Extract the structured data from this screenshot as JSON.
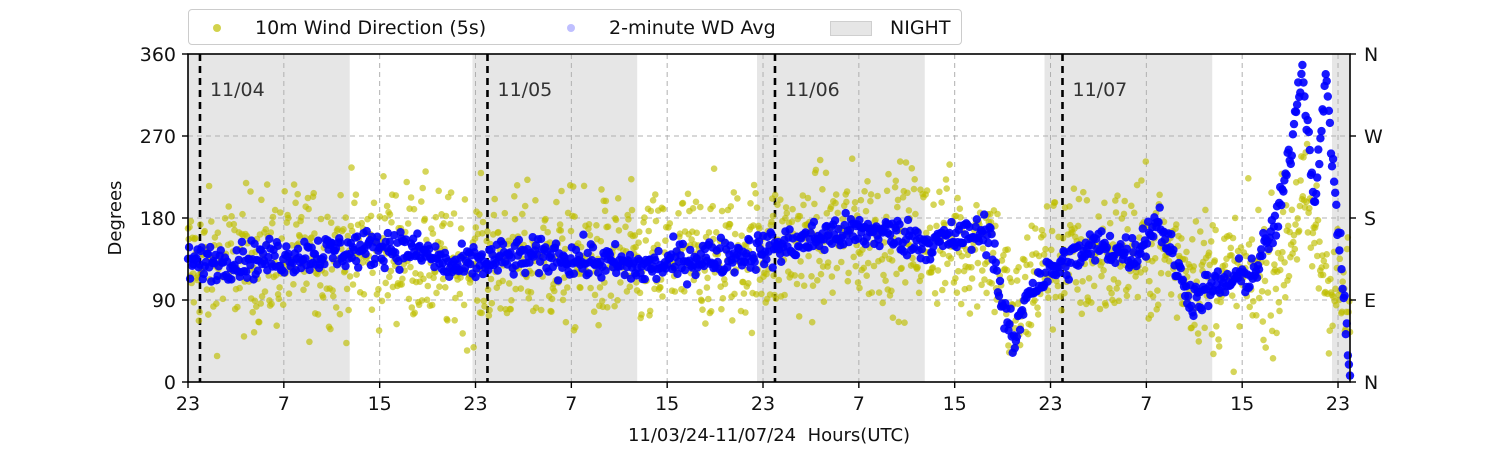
{
  "chart_data": {
    "type": "scatter",
    "title": "",
    "xlabel": "11/03/24-11/07/24  Hours(UTC)",
    "ylabel": "Degrees",
    "x_unit": "hours (UTC)",
    "x_start": "2024-11-03 23:00",
    "xlim": [
      "2024-11-03 23:00",
      "2024-11-08 00:00"
    ],
    "ylim": [
      0,
      360
    ],
    "y_ticks": [
      0,
      90,
      180,
      270,
      360
    ],
    "x_tick_labels": [
      "23",
      "7",
      "15",
      "23",
      "7",
      "15",
      "23",
      "7",
      "15",
      "23",
      "7",
      "15",
      "23"
    ],
    "right_axis_tick_labels": [
      "N",
      "E",
      "S",
      "W",
      "N"
    ],
    "grid": true,
    "legend_position": "top",
    "legend": [
      {
        "label": "10m Wind Direction (5s)",
        "kind": "marker",
        "color": "#bfbf00"
      },
      {
        "label": "2-minute WD Avg",
        "kind": "marker",
        "color": "#0000ff"
      },
      {
        "label": "NIGHT",
        "kind": "patch",
        "color": "#e6e6e6"
      }
    ],
    "night_periods": [
      {
        "start": "2024-11-03 23:00",
        "end": "2024-11-04 12:30"
      },
      {
        "start": "2024-11-04 22:45",
        "end": "2024-11-05 12:30"
      },
      {
        "start": "2024-11-05 22:30",
        "end": "2024-11-06 12:30"
      },
      {
        "start": "2024-11-06 22:30",
        "end": "2024-11-07 12:30"
      },
      {
        "start": "2024-11-07 22:30",
        "end": "2024-11-08 00:00"
      }
    ],
    "day_markers": [
      {
        "label": "11/04",
        "time": "2024-11-04 00:00"
      },
      {
        "label": "11/05",
        "time": "2024-11-05 00:00"
      },
      {
        "label": "11/06",
        "time": "2024-11-06 00:00"
      },
      {
        "label": "11/07",
        "time": "2024-11-07 00:00"
      }
    ],
    "series": [
      {
        "name": "10m Wind Direction (5s)",
        "color": "#bfbf00",
        "spread": 38,
        "x": [
          "2024-11-03 23:00",
          "2024-11-04 01:00",
          "2024-11-04 05:00",
          "2024-11-04 09:00",
          "2024-11-04 13:00",
          "2024-11-04 17:00",
          "2024-11-04 21:00",
          "2024-11-05 01:00",
          "2024-11-05 05:00",
          "2024-11-05 09:00",
          "2024-11-05 13:00",
          "2024-11-05 17:00",
          "2024-11-05 21:00",
          "2024-11-06 01:00",
          "2024-11-06 05:00",
          "2024-11-06 09:00",
          "2024-11-06 13:00",
          "2024-11-06 16:00",
          "2024-11-06 18:00",
          "2024-11-06 20:00",
          "2024-11-06 21:30",
          "2024-11-07 00:00",
          "2024-11-07 03:00",
          "2024-11-07 06:00",
          "2024-11-07 09:00",
          "2024-11-07 12:00",
          "2024-11-07 15:00",
          "2024-11-07 18:00",
          "2024-11-07 20:00",
          "2024-11-07 22:00",
          "2024-11-08 00:00"
        ],
        "y": [
          130,
          128,
          133,
          140,
          142,
          146,
          128,
          134,
          136,
          132,
          128,
          138,
          140,
          148,
          160,
          162,
          158,
          150,
          158,
          60,
          120,
          140,
          135,
          145,
          140,
          115,
          110,
          125,
          200,
          120,
          80
        ]
      },
      {
        "name": "2-minute WD Avg",
        "color": "#0000ff",
        "x": [
          "2024-11-03 23:00",
          "2024-11-04 01:00",
          "2024-11-04 05:00",
          "2024-11-04 09:00",
          "2024-11-04 13:00",
          "2024-11-04 16:00",
          "2024-11-04 19:00",
          "2024-11-04 21:00",
          "2024-11-05 01:00",
          "2024-11-05 05:00",
          "2024-11-05 09:00",
          "2024-11-05 13:00",
          "2024-11-05 17:00",
          "2024-11-05 21:00",
          "2024-11-06 01:00",
          "2024-11-06 05:00",
          "2024-11-06 09:00",
          "2024-11-06 13:00",
          "2024-11-06 16:00",
          "2024-11-06 18:00",
          "2024-11-06 19:00",
          "2024-11-06 20:00",
          "2024-11-06 21:00",
          "2024-11-07 00:00",
          "2024-11-07 03:00",
          "2024-11-07 06:00",
          "2024-11-07 08:00",
          "2024-11-07 10:00",
          "2024-11-07 11:00",
          "2024-11-07 12:00",
          "2024-11-07 14:00",
          "2024-11-07 16:00",
          "2024-11-07 18:00",
          "2024-11-07 19:00",
          "2024-11-07 20:00",
          "2024-11-07 21:00",
          "2024-11-07 22:00",
          "2024-11-08 00:00"
        ],
        "y": [
          130,
          132,
          135,
          140,
          145,
          150,
          140,
          125,
          135,
          138,
          132,
          125,
          135,
          140,
          150,
          163,
          165,
          152,
          160,
          165,
          80,
          40,
          100,
          130,
          150,
          140,
          180,
          110,
          90,
          100,
          110,
          120,
          180,
          250,
          350,
          200,
          330,
          10
        ]
      }
    ]
  }
}
